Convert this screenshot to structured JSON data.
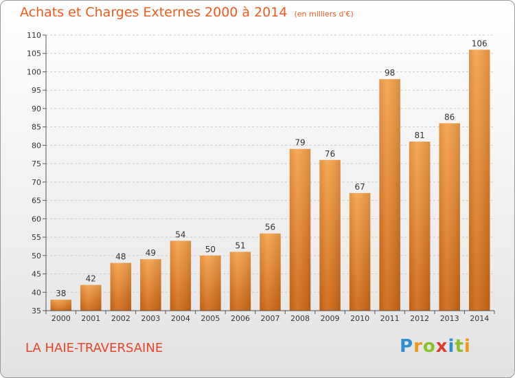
{
  "title": "Achats et Charges Externes 2000 à 2014",
  "unit": "(en milliers d'€)",
  "commune": "LA HAIE-TRAVERSAINE",
  "logo": {
    "letters": [
      "P",
      "r",
      "o",
      "x",
      "i",
      "t",
      "i"
    ],
    "colors": [
      "#2c8fd1",
      "#f29620",
      "#8cbf2c",
      "#e03a2f",
      "#2c8fd1",
      "#8cbf2c",
      "#f29620"
    ]
  },
  "chart_data": {
    "type": "bar",
    "title": "Achats et Charges Externes 2000 à 2014",
    "ylabel": "en milliers d'€",
    "categories": [
      "2000",
      "2001",
      "2002",
      "2003",
      "2004",
      "2005",
      "2006",
      "2007",
      "2008",
      "2009",
      "2010",
      "2011",
      "2012",
      "2013",
      "2014"
    ],
    "values": [
      38,
      42,
      48,
      49,
      54,
      50,
      51,
      56,
      79,
      76,
      67,
      98,
      81,
      86,
      106
    ],
    "ylim": [
      35,
      110
    ],
    "yticks": [
      35,
      40,
      45,
      50,
      55,
      60,
      65,
      70,
      75,
      80,
      85,
      90,
      95,
      100,
      105,
      110
    ],
    "bar_color": "#f08a2a"
  }
}
